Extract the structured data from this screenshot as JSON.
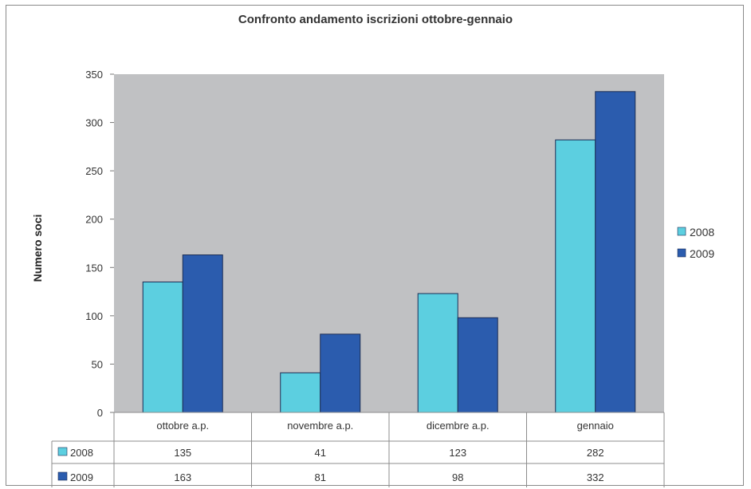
{
  "chart_data": {
    "type": "bar",
    "title": "Confronto andamento iscrizioni ottobre-gennaio",
    "ylabel": "Numero soci",
    "xlabel": "",
    "ylim": [
      0,
      350
    ],
    "yticks": [
      0,
      50,
      100,
      150,
      200,
      250,
      300,
      350
    ],
    "categories": [
      "ottobre a.p.",
      "novembre a.p.",
      "dicembre a.p.",
      "gennaio"
    ],
    "series": [
      {
        "name": "2008",
        "values": [
          135,
          41,
          123,
          282
        ],
        "color": "#5ccfe0"
      },
      {
        "name": "2009",
        "values": [
          163,
          81,
          98,
          332
        ],
        "color": "#2b5cae"
      }
    ],
    "grid": false,
    "plot_background": "#c0c1c3",
    "legend_position": "right",
    "data_table": true
  }
}
